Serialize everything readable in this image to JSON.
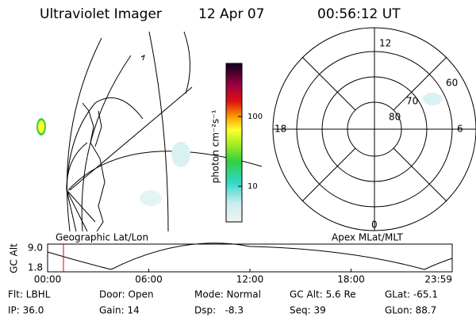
{
  "header": {
    "title": "Ultraviolet Imager",
    "date": "12 Apr 07",
    "time": "00:56:12 UT"
  },
  "geo_panel": {
    "label": "Geographic Lat/Lon"
  },
  "colorbar": {
    "unit_label": "photon cm⁻²s⁻¹",
    "ticks": [
      "100",
      "10"
    ]
  },
  "polar_panel": {
    "label": "Apex MLat/MLT",
    "mlt_labels": {
      "top": "12",
      "left": "18",
      "right": "6",
      "bottom": "0"
    },
    "mlat_labels": [
      "60",
      "70",
      "80"
    ]
  },
  "timeline": {
    "y_label": "GC Alt",
    "y_ticks": [
      "9.0",
      "1.8"
    ],
    "x_ticks": [
      "00:00",
      "06:00",
      "12:00",
      "18:00",
      "23:59"
    ]
  },
  "info": [
    [
      "Flt: LBHL",
      "Door: Open",
      "Mode: Normal",
      "GC Alt: 5.6 Re",
      "GLat: -65.1"
    ],
    [
      "IP: 36.0",
      "Gain: 14",
      "Dsp:   -8.3",
      "Seq: 39",
      "GLon: 88.7"
    ]
  ]
}
